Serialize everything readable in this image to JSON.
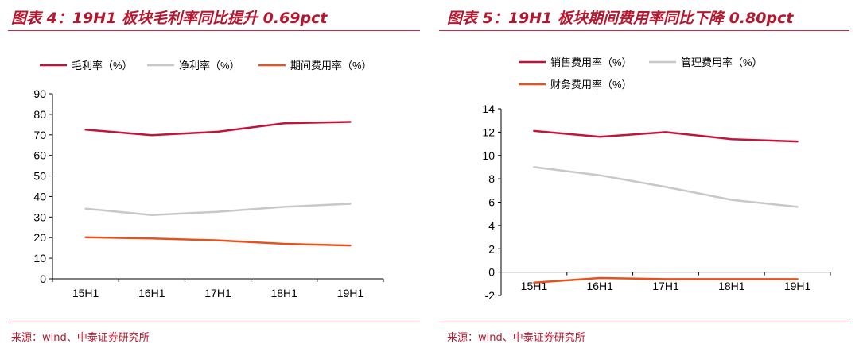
{
  "charts": [
    {
      "title": "图表 4：19H1 板块毛利率同比提升 0.69pct",
      "source": "来源：wind、中泰证券研究所",
      "chart_data": {
        "type": "line",
        "categories": [
          "15H1",
          "16H1",
          "17H1",
          "18H1",
          "19H1"
        ],
        "ylim": [
          0,
          90
        ],
        "yticks": [
          0,
          10,
          20,
          30,
          40,
          50,
          60,
          70,
          80,
          90
        ],
        "grid": false,
        "legend_position": "top",
        "series": [
          {
            "name": "毛利率（%）",
            "color": "#c0143c",
            "values": [
              72.5,
              69.8,
              71.5,
              75.6,
              76.3
            ]
          },
          {
            "name": "净利率（%）",
            "color": "#c8c8c8",
            "values": [
              34.1,
              31.0,
              32.6,
              35.0,
              36.5
            ]
          },
          {
            "name": "期间费用率（%）",
            "color": "#e8501e",
            "values": [
              20.2,
              19.6,
              18.7,
              17.0,
              16.2
            ]
          }
        ]
      }
    },
    {
      "title": "图表 5：19H1 板块期间费用率同比下降 0.80pct",
      "source": "来源：wind、中泰证券研究所",
      "chart_data": {
        "type": "line",
        "categories": [
          "15H1",
          "16H1",
          "17H1",
          "18H1",
          "19H1"
        ],
        "ylim": [
          -2,
          14
        ],
        "yticks": [
          -2,
          0,
          2,
          4,
          6,
          8,
          10,
          12,
          14
        ],
        "grid": false,
        "legend_position": "top",
        "series": [
          {
            "name": "销售费用率（%）",
            "color": "#c0143c",
            "values": [
              12.1,
              11.6,
              12.0,
              11.4,
              11.2
            ]
          },
          {
            "name": "管理费用率（%）",
            "color": "#c8c8c8",
            "values": [
              9.0,
              8.3,
              7.3,
              6.2,
              5.6
            ]
          },
          {
            "name": "财务费用率（%）",
            "color": "#e8501e",
            "values": [
              -0.9,
              -0.5,
              -0.6,
              -0.6,
              -0.6
            ]
          }
        ]
      }
    }
  ]
}
